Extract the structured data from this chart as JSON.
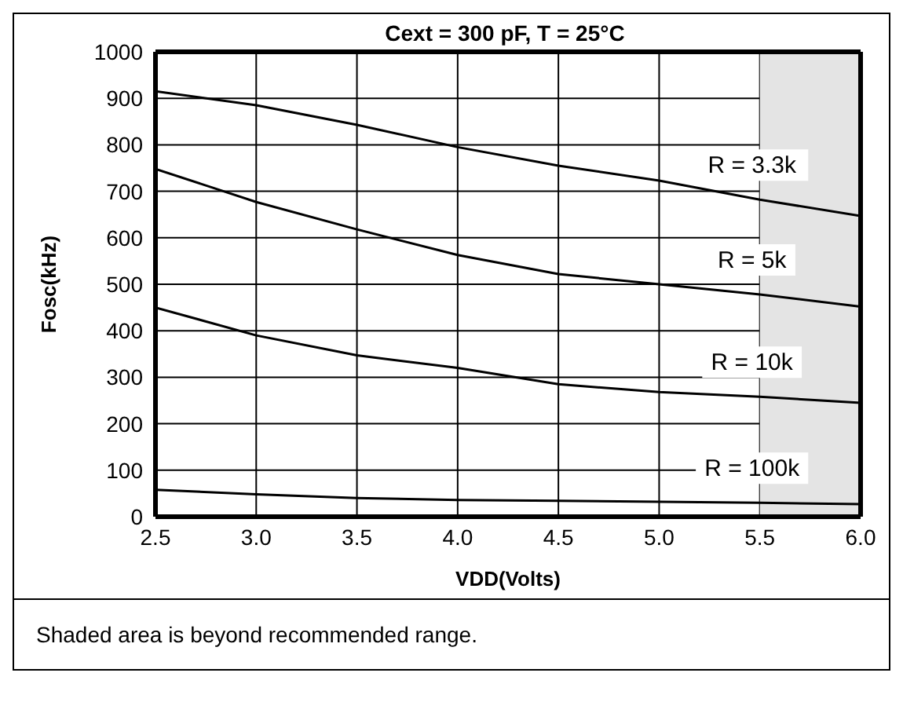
{
  "chart_data": {
    "type": "line",
    "title": "Cext = 300 pF, T = 25°C",
    "xlabel": "VDD(Volts)",
    "ylabel": "Fosc(kHz)",
    "x": [
      2.5,
      3.0,
      3.5,
      4.0,
      4.5,
      5.0,
      5.5,
      6.0
    ],
    "series": [
      {
        "name": "R = 3.3k",
        "color": "#000000",
        "values": [
          915,
          885,
          843,
          795,
          755,
          723,
          682,
          647
        ]
      },
      {
        "name": "R = 5k",
        "color": "#000000",
        "values": [
          748,
          677,
          618,
          563,
          522,
          500,
          478,
          452
        ]
      },
      {
        "name": "R = 10k",
        "color": "#000000",
        "values": [
          450,
          390,
          347,
          320,
          285,
          268,
          258,
          245
        ]
      },
      {
        "name": "R = 100k",
        "color": "#000000",
        "values": [
          58,
          48,
          40,
          36,
          34,
          32,
          30,
          27
        ]
      }
    ],
    "xlim": [
      2.5,
      6.0
    ],
    "xticks": [
      2.5,
      {
        "value": 3,
        "label": "3.0"
      },
      3.5,
      {
        "value": 4,
        "label": "4.0"
      },
      4.5,
      {
        "value": 5,
        "label": "5.0"
      },
      5.5,
      {
        "value": 6,
        "label": "6.0"
      }
    ],
    "ylim": [
      0,
      1000
    ],
    "yticks": [
      0,
      100,
      200,
      300,
      400,
      500,
      600,
      700,
      800,
      900,
      1000
    ],
    "grid": true,
    "legend": false,
    "marker": "none",
    "line_style": "solid",
    "bands": [
      {
        "axis": "x",
        "from": 5.5,
        "to": 6.0,
        "color": "#e4e4e4"
      }
    ],
    "annotations": [
      "Shaded area is beyond recommended range."
    ]
  }
}
